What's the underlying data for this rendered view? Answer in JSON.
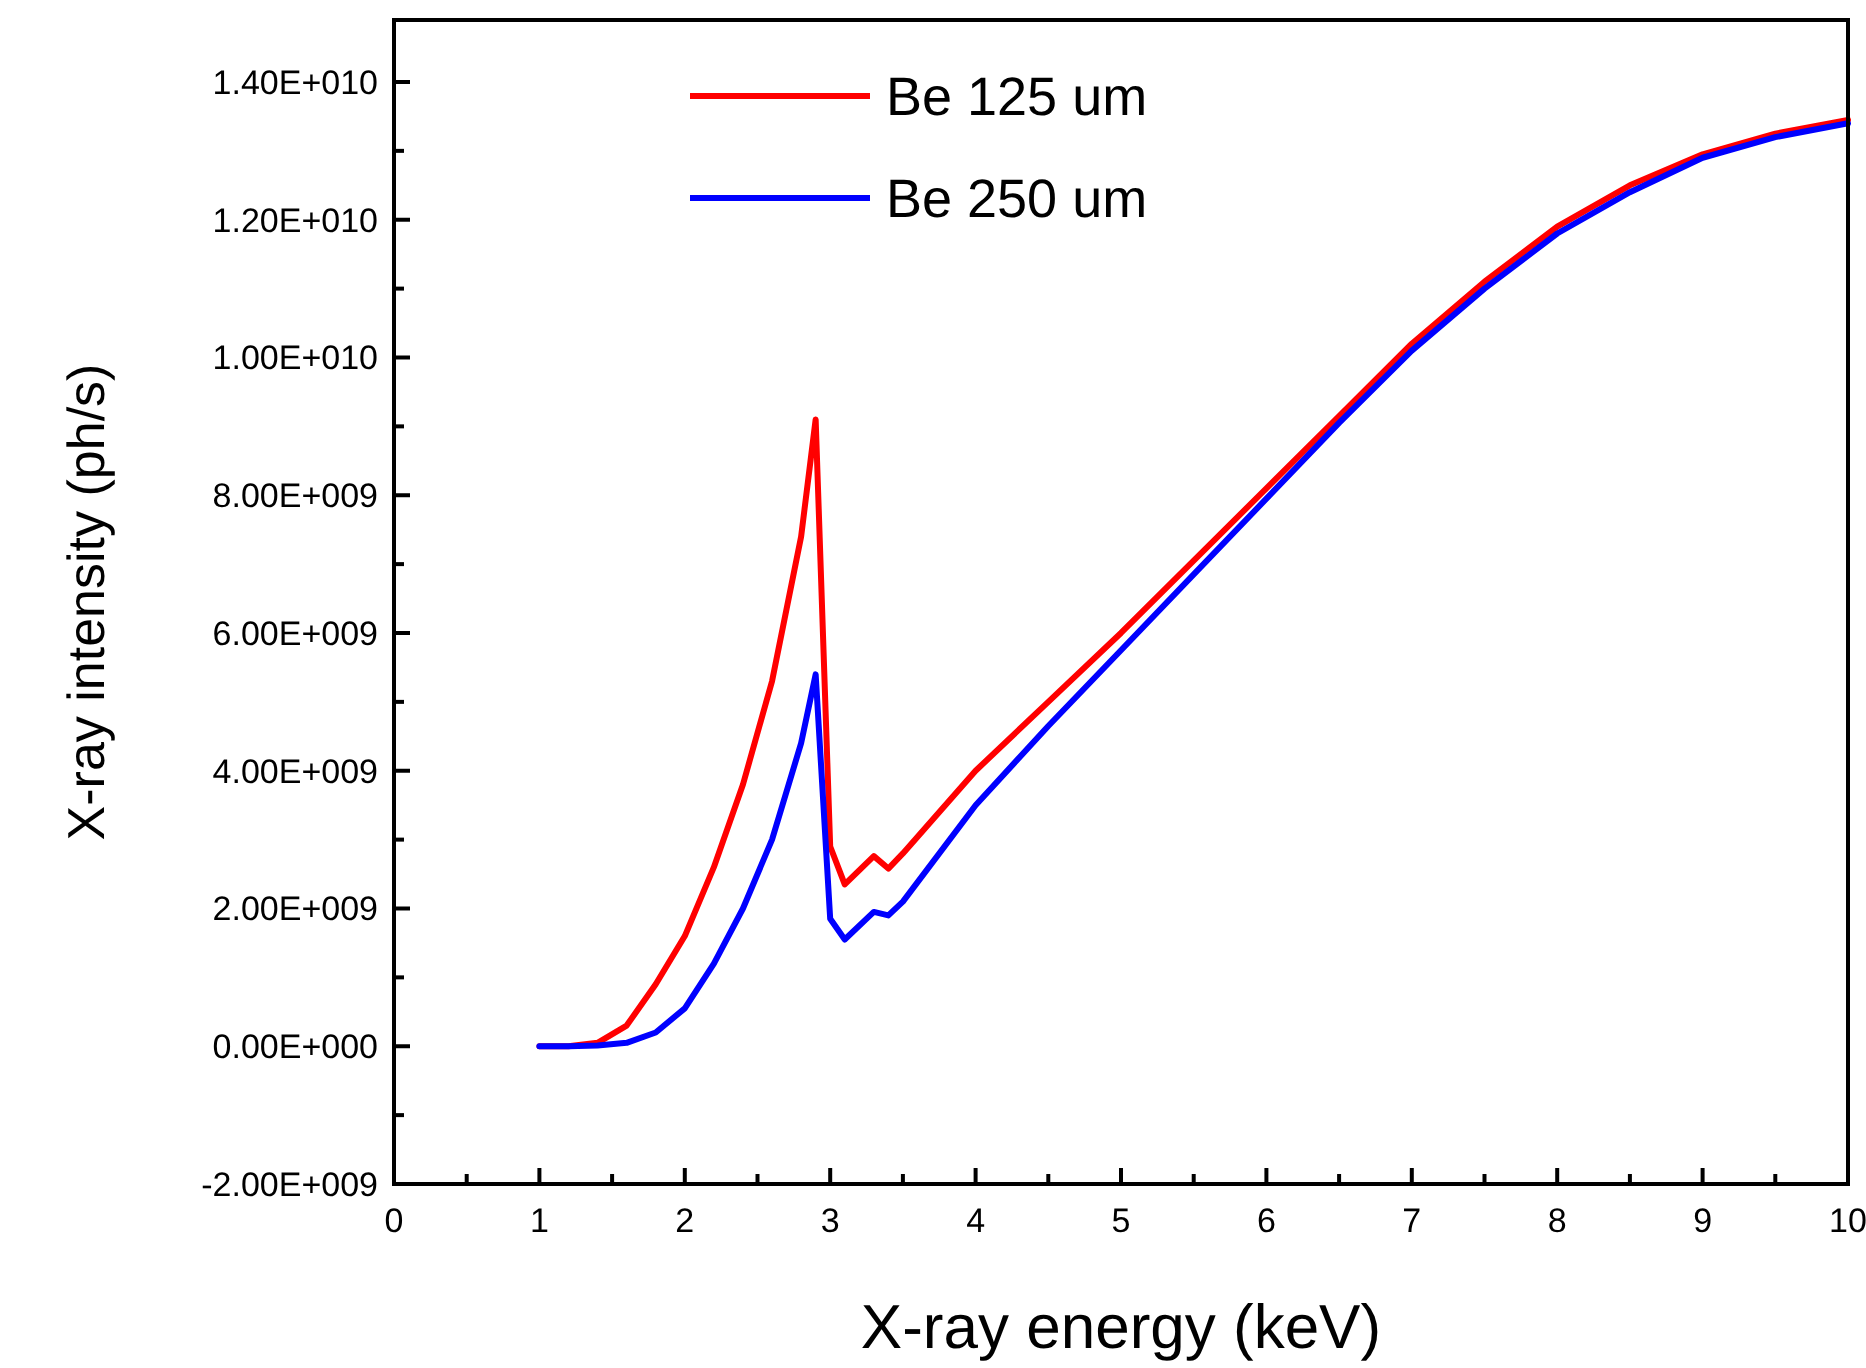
{
  "chart_data": {
    "type": "line",
    "xlabel": "X-ray energy (keV)",
    "ylabel": "X-ray intensity (ph/s)",
    "xlim": [
      0,
      10
    ],
    "ylim": [
      -2000000000,
      14900000000
    ],
    "xticks": [
      0,
      {
        "value": 0.5,
        "label": null
      },
      1,
      {
        "value": 1.5,
        "label": null
      },
      2,
      {
        "value": 2.5,
        "label": null
      },
      3,
      {
        "value": 3.5,
        "label": null
      },
      4,
      {
        "value": 4.5,
        "label": null
      },
      5,
      {
        "value": 5.5,
        "label": null
      },
      6,
      {
        "value": 6.5,
        "label": null
      },
      7,
      {
        "value": 7.5,
        "label": null
      },
      8,
      {
        "value": 8.5,
        "label": null
      },
      9,
      {
        "value": 9.5,
        "label": null
      },
      10
    ],
    "yticks": [
      {
        "value": -2000000000,
        "label": "-2.00E+009"
      },
      {
        "value": -1000000000,
        "label": null
      },
      {
        "value": 0,
        "label": "0.00E+000"
      },
      {
        "value": 1000000000,
        "label": null
      },
      {
        "value": 2000000000,
        "label": "2.00E+009"
      },
      {
        "value": 3000000000,
        "label": null
      },
      {
        "value": 4000000000,
        "label": "4.00E+009"
      },
      {
        "value": 5000000000,
        "label": null
      },
      {
        "value": 6000000000,
        "label": "6.00E+009"
      },
      {
        "value": 7000000000,
        "label": null
      },
      {
        "value": 8000000000,
        "label": "8.00E+009"
      },
      {
        "value": 9000000000,
        "label": null
      },
      {
        "value": 10000000000,
        "label": "1.00E+010"
      },
      {
        "value": 11000000000,
        "label": null
      },
      {
        "value": 12000000000,
        "label": "1.20E+010"
      },
      {
        "value": 13000000000,
        "label": null
      },
      {
        "value": 14000000000,
        "label": "1.40E+010"
      }
    ],
    "grid": false,
    "legend": "top",
    "line_style": "solid",
    "series": [
      {
        "name": "Be 125 um",
        "color": "#ff0000",
        "x": [
          1,
          1.2,
          1.4,
          1.6,
          1.8,
          2,
          2.2,
          2.4,
          2.6,
          2.8,
          2.9,
          3,
          3.1,
          3.3,
          3.4,
          3.5,
          4,
          4.5,
          5,
          5.5,
          6,
          6.5,
          7,
          7.5,
          8,
          8.5,
          9,
          9.5,
          10
        ],
        "values": [
          0,
          0,
          50000000,
          300000000,
          900000000,
          1600000000,
          2600000000,
          3800000000,
          5300000000,
          7400000000,
          9100000000,
          2900000000,
          2350000000,
          2760000000,
          2580000000,
          2800000000,
          4000000000,
          5000000000,
          6000000000,
          7050000000,
          8100000000,
          9150000000,
          10200000000,
          11100000000,
          11900000000,
          12500000000,
          12950000000,
          13250000000,
          13450000000
        ]
      },
      {
        "name": "Be 250 um",
        "color": "#0000ff",
        "x": [
          1,
          1.2,
          1.4,
          1.6,
          1.8,
          2,
          2.2,
          2.4,
          2.6,
          2.8,
          2.9,
          3,
          3.1,
          3.3,
          3.4,
          3.5,
          4,
          4.5,
          5,
          5.5,
          6,
          6.5,
          7,
          7.5,
          8,
          8.5,
          9,
          9.5,
          10
        ],
        "values": [
          0,
          0,
          10000000,
          50000000,
          200000000,
          550000000,
          1200000000,
          2000000000,
          3000000000,
          4400000000,
          5400000000,
          1850000000,
          1550000000,
          1950000000,
          1900000000,
          2100000000,
          3500000000,
          4650000000,
          5750000000,
          6850000000,
          7950000000,
          9050000000,
          10100000000,
          11000000000,
          11800000000,
          12400000000,
          12900000000,
          13200000000,
          13400000000
        ]
      }
    ]
  }
}
